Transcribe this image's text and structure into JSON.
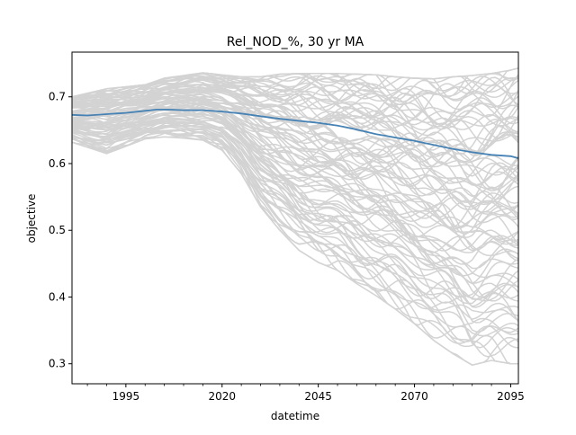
{
  "chart_data": {
    "type": "line",
    "title": "Rel_NOD_%, 30 yr MA",
    "xlabel": "datetime",
    "ylabel": "objective",
    "xlim": [
      1981,
      2097
    ],
    "ylim": [
      0.27,
      0.767
    ],
    "x_major_ticks": [
      1995,
      2020,
      2045,
      2070,
      2095
    ],
    "x_tick_labels": [
      "1995",
      "2020",
      "2045",
      "2070",
      "2095"
    ],
    "x_minor_ticks": [
      1985,
      1990,
      2000,
      2005,
      2010,
      2015,
      2025,
      2030,
      2035,
      2040,
      2050,
      2055,
      2060,
      2065,
      2075,
      2080,
      2085,
      2090
    ],
    "y_ticks": [
      0.3,
      0.4,
      0.5,
      0.6,
      0.7
    ],
    "y_tick_labels": [
      "0.3",
      "0.4",
      "0.5",
      "0.6",
      "0.7"
    ],
    "grid": false,
    "legend": "none",
    "colors": {
      "ensemble": "#d3d3d3",
      "mean": "#4682b4"
    },
    "ensemble": {
      "style": "many grey realization lines",
      "x": [
        1981,
        1990,
        2000,
        2005,
        2010,
        2015,
        2020,
        2025,
        2030,
        2035,
        2040,
        2045,
        2050,
        2055,
        2060,
        2065,
        2070,
        2075,
        2080,
        2085,
        2090,
        2095,
        2097
      ],
      "upper": [
        0.7,
        0.712,
        0.718,
        0.728,
        0.732,
        0.736,
        0.733,
        0.73,
        0.73,
        0.734,
        0.735,
        0.735,
        0.735,
        0.734,
        0.733,
        0.73,
        0.728,
        0.727,
        0.73,
        0.732,
        0.735,
        0.74,
        0.743
      ],
      "lower": [
        0.632,
        0.615,
        0.637,
        0.64,
        0.638,
        0.635,
        0.62,
        0.585,
        0.535,
        0.5,
        0.47,
        0.452,
        0.44,
        0.42,
        0.402,
        0.382,
        0.36,
        0.335,
        0.315,
        0.298,
        0.305,
        0.3,
        0.3
      ]
    },
    "series": [
      {
        "x": [
          1981,
          1985,
          1990,
          1995,
          2000,
          2003,
          2006,
          2010,
          2015,
          2020,
          2025,
          2030,
          2035,
          2040,
          2045,
          2050,
          2055,
          2060,
          2065,
          2070,
          2075,
          2080,
          2085,
          2090,
          2095,
          2097
        ],
        "values": [
          0.673,
          0.672,
          0.674,
          0.676,
          0.679,
          0.681,
          0.681,
          0.68,
          0.68,
          0.678,
          0.675,
          0.671,
          0.667,
          0.664,
          0.661,
          0.657,
          0.651,
          0.644,
          0.639,
          0.634,
          0.628,
          0.622,
          0.617,
          0.613,
          0.611,
          0.608
        ]
      }
    ]
  }
}
